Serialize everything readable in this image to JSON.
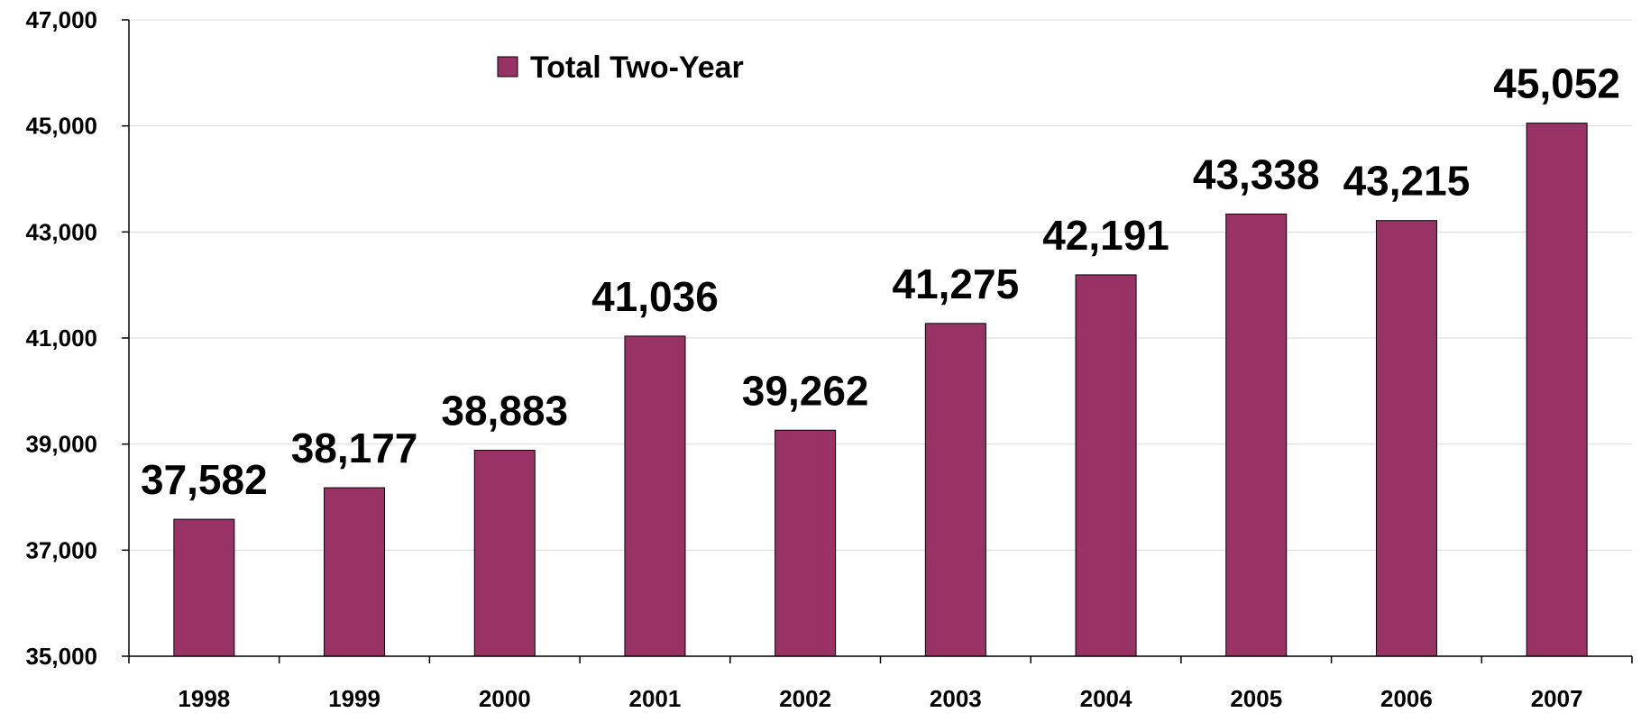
{
  "chart_data": {
    "type": "bar",
    "categories": [
      "1998",
      "1999",
      "2000",
      "2001",
      "2002",
      "2003",
      "2004",
      "2005",
      "2006",
      "2007"
    ],
    "series": [
      {
        "name": "Total Two-Year",
        "values": [
          37582,
          38177,
          38883,
          41036,
          39262,
          41275,
          42191,
          43338,
          43215,
          45052
        ],
        "data_labels": [
          "37,582",
          "38,177",
          "38,883",
          "41,036",
          "39,262",
          "41,275",
          "42,191",
          "43,338",
          "43,215",
          "45,052"
        ]
      }
    ],
    "ylim": [
      35000,
      47000
    ],
    "yticks": [
      35000,
      37000,
      39000,
      41000,
      43000,
      45000,
      47000
    ],
    "ytick_labels": [
      "35,000",
      "37,000",
      "39,000",
      "41,000",
      "43,000",
      "45,000",
      "47,000"
    ],
    "grid": true,
    "legend": {
      "position": "top-center"
    },
    "colors": {
      "bar": "#993366",
      "bar_border": "#000000",
      "grid": "#d9d9d9",
      "axis": "#000000"
    }
  }
}
